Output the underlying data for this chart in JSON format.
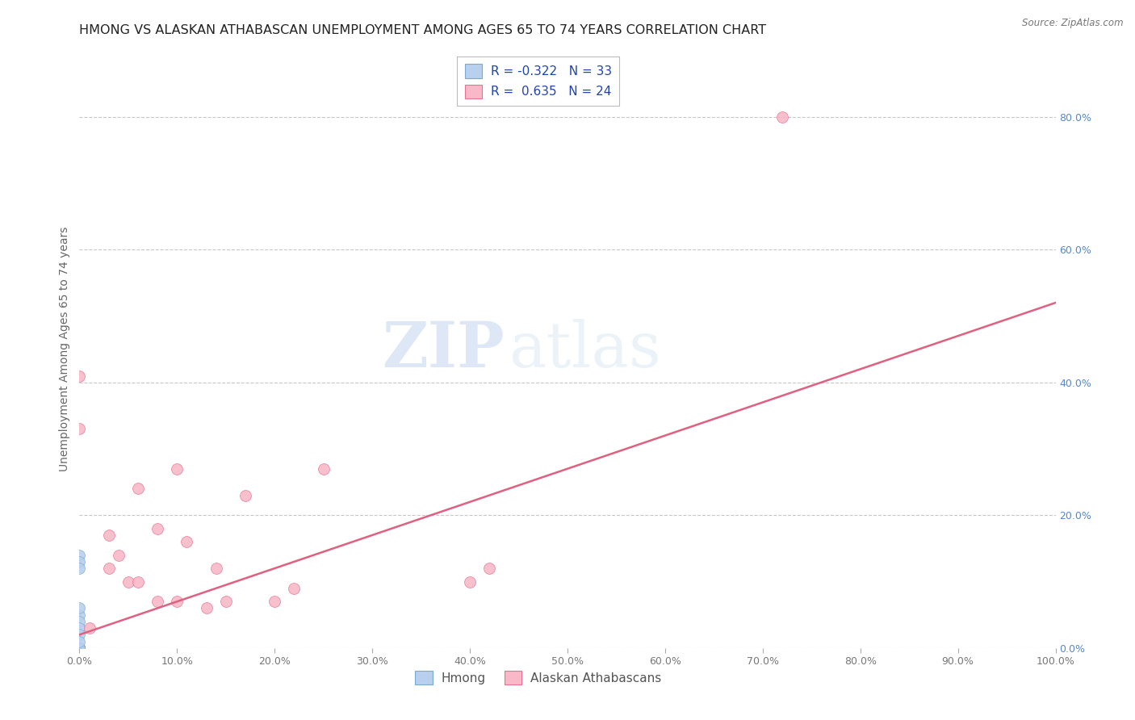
{
  "title": "HMONG VS ALASKAN ATHABASCAN UNEMPLOYMENT AMONG AGES 65 TO 74 YEARS CORRELATION CHART",
  "source": "Source: ZipAtlas.com",
  "ylabel": "Unemployment Among Ages 65 to 74 years",
  "watermark_zip": "ZIP",
  "watermark_atlas": "atlas",
  "legend_hmong": {
    "R": -0.322,
    "N": 33,
    "label": "Hmong"
  },
  "legend_athabascan": {
    "R": 0.635,
    "N": 24,
    "label": "Alaskan Athabascans"
  },
  "xlim": [
    0.0,
    1.0
  ],
  "ylim": [
    0.0,
    0.9
  ],
  "xticks": [
    0.0,
    0.1,
    0.2,
    0.3,
    0.4,
    0.5,
    0.6,
    0.7,
    0.8,
    0.9,
    1.0
  ],
  "xticklabels": [
    "0.0%",
    "10.0%",
    "20.0%",
    "30.0%",
    "40.0%",
    "50.0%",
    "60.0%",
    "70.0%",
    "80.0%",
    "90.0%",
    "100.0%"
  ],
  "ytick_positions": [
    0.0,
    0.2,
    0.4,
    0.6,
    0.8
  ],
  "yticklabels_right": [
    "0.0%",
    "20.0%",
    "40.0%",
    "60.0%",
    "80.0%"
  ],
  "hmong_x": [
    0.0,
    0.0,
    0.0,
    0.0,
    0.0,
    0.0,
    0.0,
    0.0,
    0.0,
    0.0,
    0.0,
    0.0,
    0.0,
    0.0,
    0.0,
    0.0,
    0.0,
    0.0,
    0.0,
    0.0,
    0.0,
    0.0,
    0.0,
    0.0,
    0.0,
    0.0,
    0.0,
    0.0,
    0.0,
    0.0,
    0.0,
    0.0,
    0.0
  ],
  "hmong_y": [
    0.0,
    0.0,
    0.0,
    0.0,
    0.0,
    0.0,
    0.0,
    0.0,
    0.0,
    0.0,
    0.0,
    0.0,
    0.0,
    0.0,
    0.0,
    0.0,
    0.0,
    0.0,
    0.0,
    0.0,
    0.0,
    0.0,
    0.0,
    0.0,
    0.14,
    0.13,
    0.12,
    0.05,
    0.04,
    0.06,
    0.03,
    0.02,
    0.01
  ],
  "athabascan_x": [
    0.0,
    0.0,
    0.01,
    0.03,
    0.03,
    0.04,
    0.05,
    0.06,
    0.06,
    0.08,
    0.08,
    0.1,
    0.1,
    0.11,
    0.13,
    0.14,
    0.15,
    0.17,
    0.2,
    0.22,
    0.25,
    0.4,
    0.42,
    0.72
  ],
  "athabascan_y": [
    0.41,
    0.33,
    0.03,
    0.17,
    0.12,
    0.14,
    0.1,
    0.1,
    0.24,
    0.07,
    0.18,
    0.07,
    0.27,
    0.16,
    0.06,
    0.12,
    0.07,
    0.23,
    0.07,
    0.09,
    0.27,
    0.1,
    0.12,
    0.8
  ],
  "athabascan_trendline_x": [
    0.0,
    1.0
  ],
  "athabascan_trendline_y": [
    0.02,
    0.52
  ],
  "hmong_color": "#b8d0ee",
  "hmong_edge_color": "#7aaad0",
  "athabascan_color": "#f8b8c8",
  "athabascan_edge_color": "#e87090",
  "trendline_color": "#e06080",
  "grid_color": "#c8c8c8",
  "background_color": "#ffffff",
  "title_fontsize": 11.5,
  "axis_label_fontsize": 10,
  "tick_fontsize": 9,
  "legend_fontsize": 11,
  "marker_size": 100
}
